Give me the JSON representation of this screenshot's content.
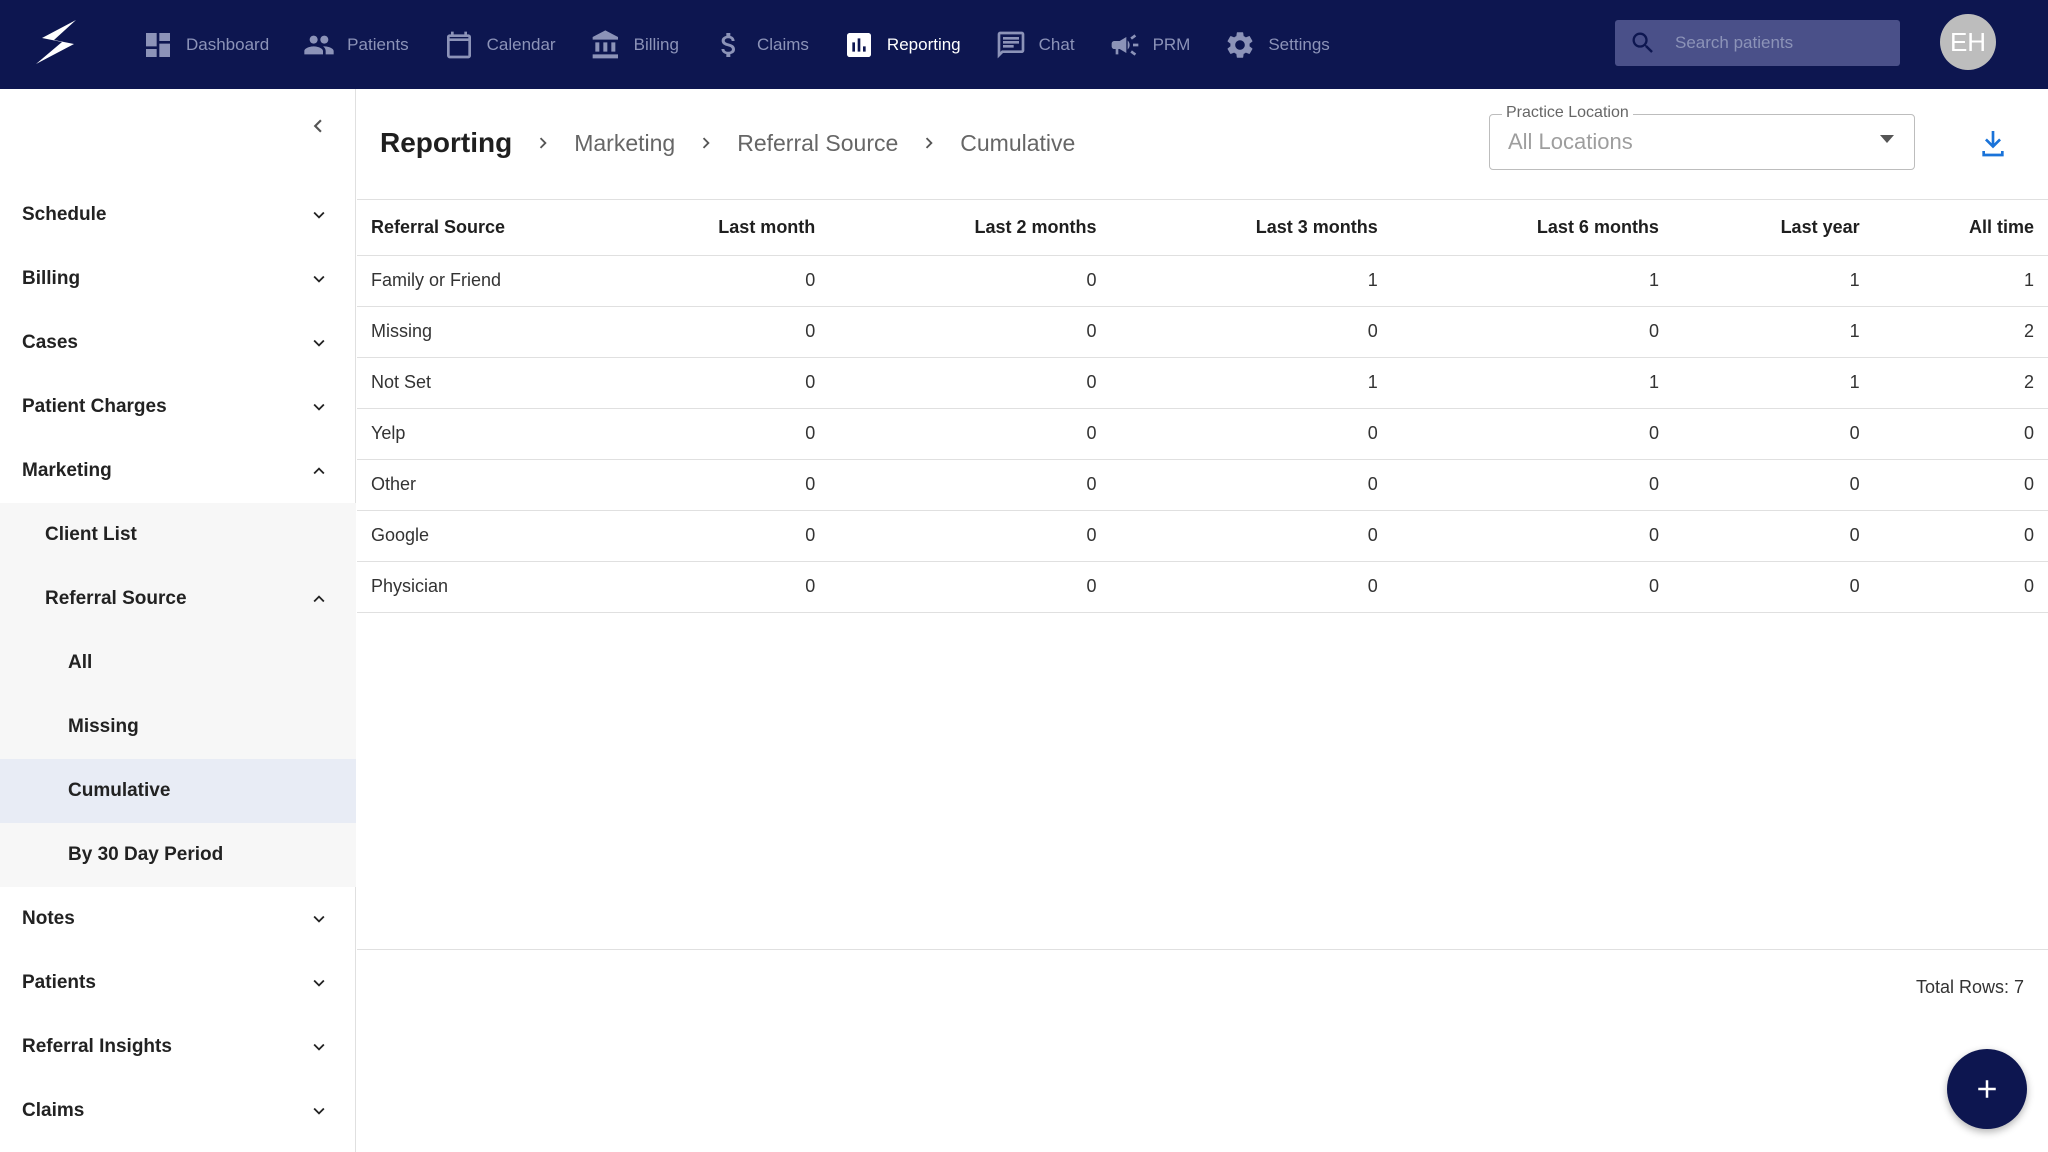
{
  "nav": {
    "items": [
      {
        "label": "Dashboard",
        "icon": "dashboard-icon"
      },
      {
        "label": "Patients",
        "icon": "people-icon"
      },
      {
        "label": "Calendar",
        "icon": "calendar-icon"
      },
      {
        "label": "Billing",
        "icon": "bank-icon"
      },
      {
        "label": "Claims",
        "icon": "dollar-icon"
      },
      {
        "label": "Reporting",
        "icon": "bar-chart-icon",
        "active": true
      },
      {
        "label": "Chat",
        "icon": "chat-icon"
      },
      {
        "label": "PRM",
        "icon": "megaphone-icon"
      },
      {
        "label": "Settings",
        "icon": "gear-icon"
      }
    ],
    "search_placeholder": "Search patients",
    "avatar_initials": "EH"
  },
  "sidebar": {
    "items": [
      {
        "label": "Schedule",
        "level": 1,
        "chevron": "down"
      },
      {
        "label": "Billing",
        "level": 1,
        "chevron": "down"
      },
      {
        "label": "Cases",
        "level": 1,
        "chevron": "down"
      },
      {
        "label": "Patient Charges",
        "level": 1,
        "chevron": "down"
      },
      {
        "label": "Marketing",
        "level": 1,
        "chevron": "up"
      },
      {
        "label": "Client List",
        "level": 2
      },
      {
        "label": "Referral Source",
        "level": 2,
        "chevron": "up"
      },
      {
        "label": "All",
        "level": 3
      },
      {
        "label": "Missing",
        "level": 3
      },
      {
        "label": "Cumulative",
        "level": 3,
        "selected": true
      },
      {
        "label": "By 30 Day Period",
        "level": 3
      },
      {
        "label": "Notes",
        "level": 1,
        "chevron": "down"
      },
      {
        "label": "Patients",
        "level": 1,
        "chevron": "down"
      },
      {
        "label": "Referral Insights",
        "level": 1,
        "chevron": "down"
      },
      {
        "label": "Claims",
        "level": 1,
        "chevron": "down"
      }
    ]
  },
  "breadcrumb": {
    "title": "Reporting",
    "items": [
      "Marketing",
      "Referral Source",
      "Cumulative"
    ]
  },
  "location": {
    "label": "Practice Location",
    "value": "All Locations"
  },
  "table": {
    "headers": [
      "Referral Source",
      "Last month",
      "Last 2 months",
      "Last 3 months",
      "Last 6 months",
      "Last year",
      "All time"
    ],
    "rows": [
      [
        "Family or Friend",
        "0",
        "0",
        "1",
        "1",
        "1",
        "1"
      ],
      [
        "Missing",
        "0",
        "0",
        "0",
        "0",
        "1",
        "2"
      ],
      [
        "Not Set",
        "0",
        "0",
        "1",
        "1",
        "1",
        "2"
      ],
      [
        "Yelp",
        "0",
        "0",
        "0",
        "0",
        "0",
        "0"
      ],
      [
        "Other",
        "0",
        "0",
        "0",
        "0",
        "0",
        "0"
      ],
      [
        "Google",
        "0",
        "0",
        "0",
        "0",
        "0",
        "0"
      ],
      [
        "Physician",
        "0",
        "0",
        "0",
        "0",
        "0",
        "0"
      ]
    ],
    "total_rows": "Total Rows: 7"
  },
  "colors": {
    "nav_bg": "#0d1650",
    "accent": "#1a73d9",
    "selected_bg": "#e8ecf5"
  }
}
